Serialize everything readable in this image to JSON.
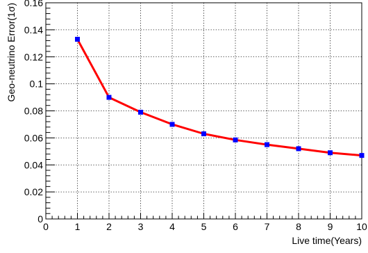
{
  "chart_data": {
    "type": "line",
    "title": "",
    "xlabel": "Live time(Years)",
    "ylabel": "Geo-neutrino Error(1σ)",
    "xlim": [
      0,
      10
    ],
    "ylim": [
      0,
      0.16
    ],
    "x_ticks": [
      "0",
      "1",
      "2",
      "3",
      "4",
      "5",
      "6",
      "7",
      "8",
      "9",
      "10"
    ],
    "y_ticks": [
      "0",
      "0.02",
      "0.04",
      "0.06",
      "0.08",
      "0.1",
      "0.12",
      "0.14",
      "0.16"
    ],
    "grid": true,
    "series": [
      {
        "x": [
          1,
          2,
          3,
          4,
          5,
          6,
          7,
          8,
          9,
          10
        ],
        "y": [
          0.133,
          0.09,
          0.079,
          0.07,
          0.063,
          0.0585,
          0.055,
          0.052,
          0.049,
          0.047
        ],
        "line_color": "#ff0000",
        "marker_color": "#0000ff"
      }
    ]
  }
}
